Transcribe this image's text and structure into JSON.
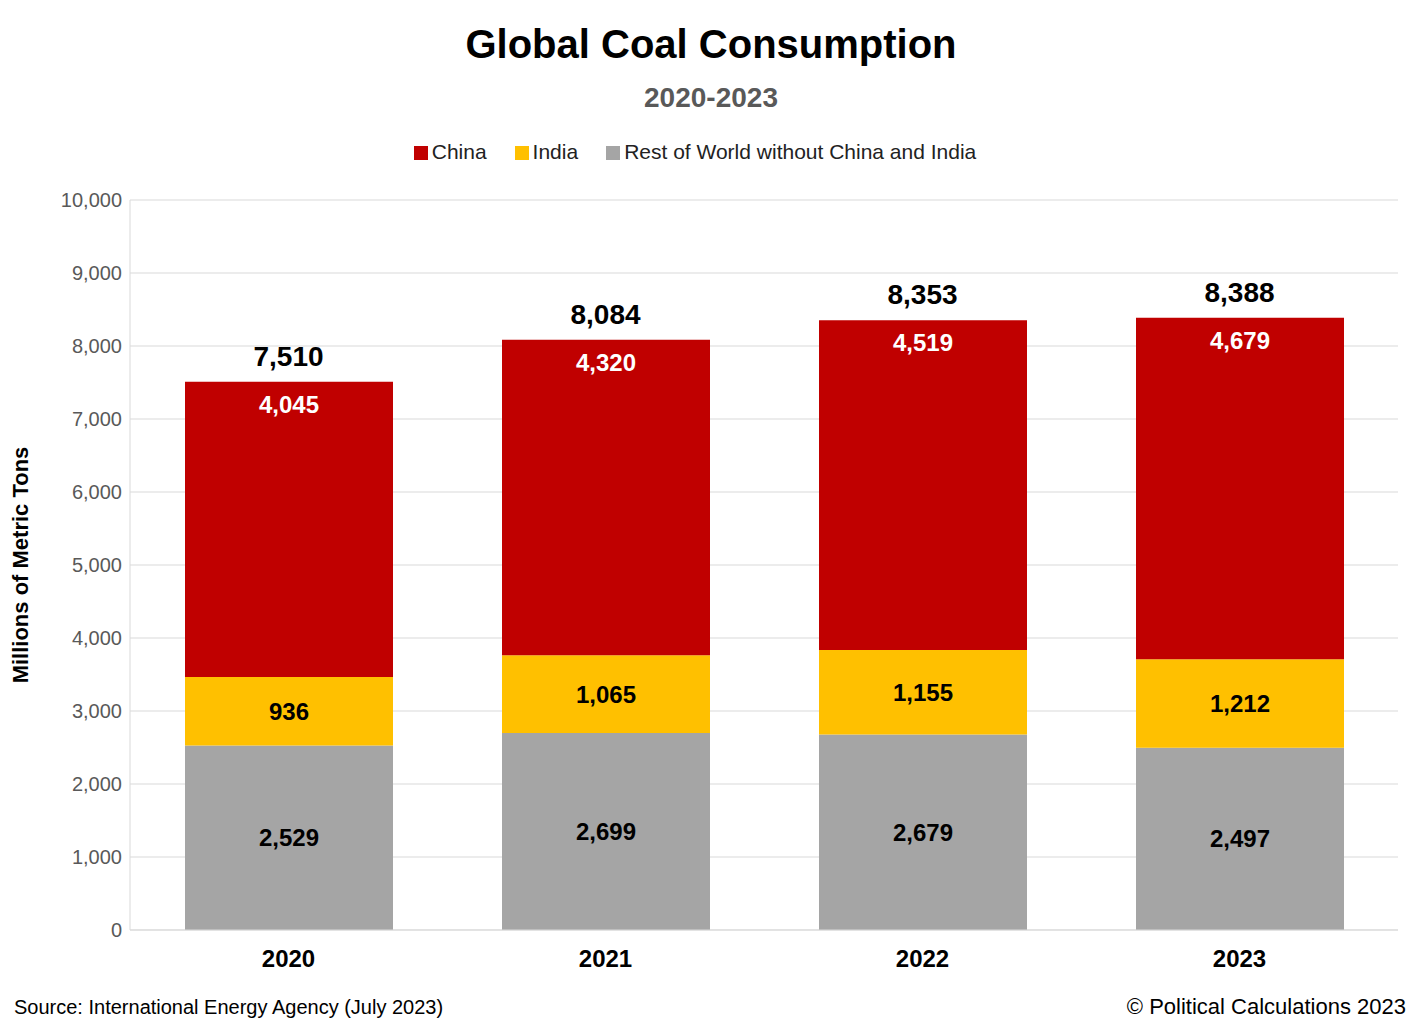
{
  "chart_data": {
    "type": "bar",
    "title": "Global Coal Consumption",
    "subtitle": "2020-2023",
    "y_label": "Millions of Metric Tons",
    "source": "Source: International Energy Agency (July 2023)",
    "credit": "© Political Calculations 2023",
    "categories": [
      "2020",
      "2021",
      "2022",
      "2023"
    ],
    "series": [
      {
        "name": "Rest of World without China and India",
        "color": "#a5a5a5",
        "values": [
          2529,
          2699,
          2679,
          2497
        ],
        "value_labels": [
          "2,529",
          "2,699",
          "2,679",
          "2,497"
        ]
      },
      {
        "name": "India",
        "color": "#ffc000",
        "values": [
          936,
          1065,
          1155,
          1212
        ],
        "value_labels": [
          "936",
          "1,065",
          "1,155",
          "1,212"
        ]
      },
      {
        "name": "China",
        "color": "#c00000",
        "values": [
          4045,
          4320,
          4519,
          4679
        ],
        "value_labels": [
          "4,045",
          "4,320",
          "4,519",
          "4,679"
        ]
      }
    ],
    "totals": [
      7510,
      8084,
      8353,
      8388
    ],
    "total_labels": [
      "7,510",
      "8,084",
      "8,353",
      "8,388"
    ],
    "ylim": [
      0,
      10000
    ],
    "yticks": [
      0,
      {
        "value": 1000,
        "label": "1,000"
      },
      {
        "value": 2000,
        "label": "2,000"
      },
      {
        "value": 3000,
        "label": "3,000"
      },
      {
        "value": 4000,
        "label": "4,000"
      },
      {
        "value": 5000,
        "label": "5,000"
      },
      {
        "value": 6000,
        "label": "6,000"
      },
      {
        "value": 7000,
        "label": "7,000"
      },
      {
        "value": 8000,
        "label": "8,000"
      },
      {
        "value": 9000,
        "label": "9,000"
      },
      {
        "value": 10000,
        "label": "10,000"
      }
    ],
    "grid": true,
    "stacked": true,
    "data_labels": true,
    "legend": "top"
  }
}
